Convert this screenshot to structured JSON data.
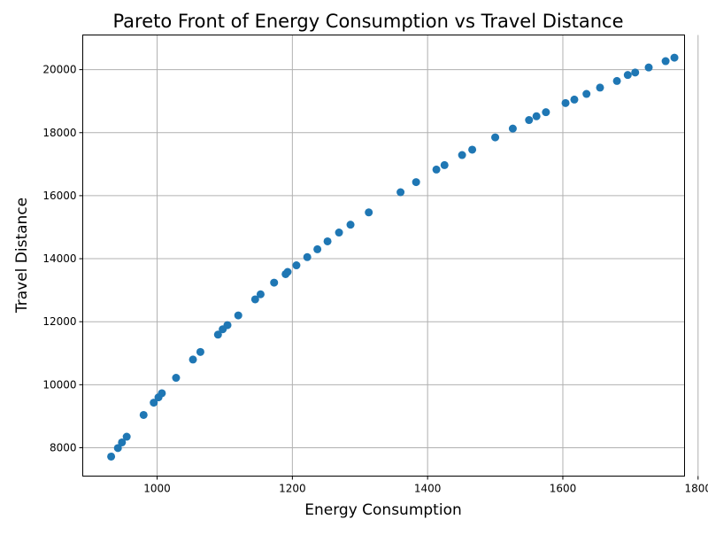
{
  "chart_data": {
    "type": "scatter",
    "title": "Pareto Front of Energy Consumption vs Travel Distance",
    "xlabel": "Energy Consumption",
    "ylabel": "Travel Distance",
    "xlim": [
      890,
      1780
    ],
    "ylim": [
      7100,
      21100
    ],
    "xticks": [
      1000,
      1200,
      1400,
      1600,
      1800
    ],
    "yticks": [
      8000,
      10000,
      12000,
      14000,
      16000,
      18000,
      20000
    ],
    "xtick_labels": [
      "1000",
      "1200",
      "1400",
      "1600",
      "1800"
    ],
    "ytick_labels": [
      "8000",
      "10000",
      "12000",
      "14000",
      "16000",
      "18000",
      "20000"
    ],
    "grid": true,
    "marker_color": "#1f77b4",
    "x": [
      932,
      942,
      948,
      955,
      980,
      995,
      1002,
      1007,
      1028,
      1053,
      1064,
      1090,
      1097,
      1104,
      1120,
      1145,
      1153,
      1173,
      1190,
      1193,
      1206,
      1222,
      1237,
      1252,
      1269,
      1286,
      1313,
      1360,
      1383,
      1413,
      1425,
      1451,
      1466,
      1500,
      1526,
      1550,
      1561,
      1575,
      1604,
      1617,
      1635,
      1655,
      1680,
      1696,
      1707,
      1727,
      1752,
      1765
    ],
    "y": [
      7720,
      7990,
      8170,
      8350,
      9040,
      9430,
      9600,
      9730,
      10220,
      10800,
      11040,
      11590,
      11760,
      11890,
      12200,
      12710,
      12870,
      13240,
      13510,
      13580,
      13790,
      14050,
      14300,
      14550,
      14830,
      15080,
      15470,
      16110,
      16430,
      16830,
      16970,
      17290,
      17460,
      17850,
      18130,
      18400,
      18520,
      18650,
      18940,
      19050,
      19230,
      19430,
      19640,
      19830,
      19910,
      20070,
      20270,
      20380
    ]
  }
}
